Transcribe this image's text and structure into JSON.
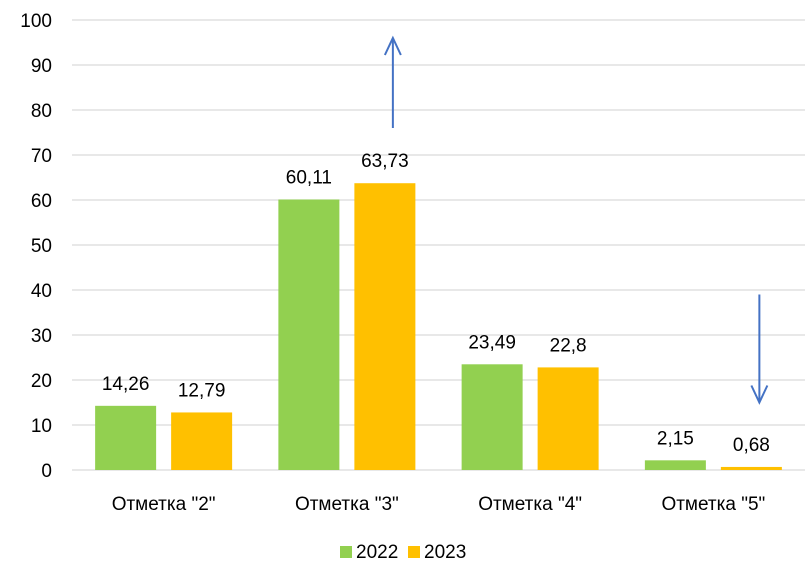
{
  "chart_data": {
    "type": "bar",
    "categories": [
      "Отметка \"2\"",
      "Отметка \"3\"",
      "Отметка \"4\"",
      "Отметка \"5\""
    ],
    "series": [
      {
        "name": "2022",
        "values": [
          14.26,
          60.11,
          23.49,
          2.15
        ],
        "labels": [
          "14,26",
          "60,11",
          "23,49",
          "2,15"
        ],
        "color": "#92D050"
      },
      {
        "name": "2023",
        "values": [
          12.79,
          63.73,
          22.8,
          0.68
        ],
        "labels": [
          "12,79",
          "63,73",
          "22,8",
          "0,68"
        ],
        "color": "#FFC000"
      }
    ],
    "yticks": [
      "0",
      "10",
      "20",
      "30",
      "40",
      "50",
      "60",
      "70",
      "80",
      "90",
      "100"
    ],
    "ylim": [
      0,
      100
    ],
    "grid": true,
    "legend_position": "bottom",
    "annotations": [
      {
        "type": "arrow-up",
        "category": "Отметка \"3\"",
        "from": 76,
        "to": 96,
        "color": "#4472C4"
      },
      {
        "type": "arrow-down",
        "category": "Отметка \"5\"",
        "from": 39,
        "to": 15,
        "color": "#4472C4"
      }
    ]
  }
}
